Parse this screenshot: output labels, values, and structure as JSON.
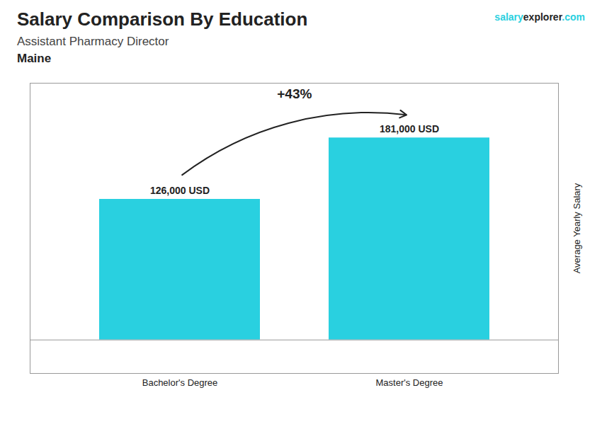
{
  "chart_data": {
    "type": "bar",
    "title": "Salary Comparison By Education",
    "subtitle": "Assistant Pharmacy Director",
    "annotations": [
      "Maine",
      "salary",
      "explorer",
      ".com",
      "+43%"
    ],
    "ylabel": "Average Yearly Salary",
    "categories": [
      "Bachelor's Degree",
      "Master's Degree"
    ],
    "values": [
      126000,
      181000
    ],
    "value_labels": [
      "126,000 USD",
      "181,000 USD"
    ],
    "data_labels": true,
    "color": "#29d0e0",
    "ylim": [
      -30000,
      230000
    ],
    "yticks": [],
    "tick_labels": "x",
    "grid": false
  }
}
